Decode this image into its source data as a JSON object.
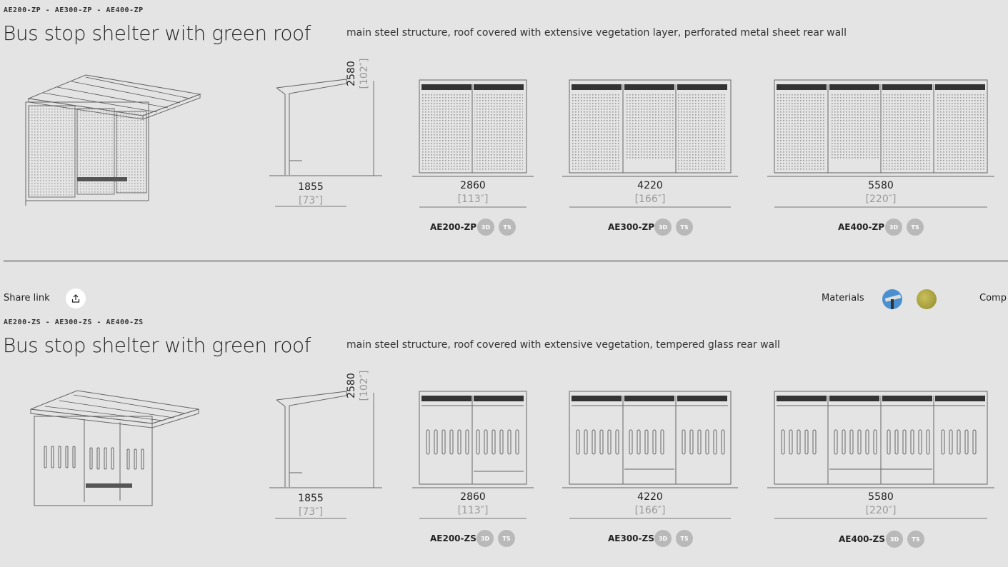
{
  "sections": [
    {
      "codes": "AE200-ZP - AE300-ZP - AE400-ZP",
      "title": "Bus stop shelter with green roof",
      "description": "main steel structure, roof covered with extensive vegetation layer, perforated metal sheet rear wall",
      "side_view": {
        "height": "2580",
        "height_in": "[102″]",
        "depth": "1855",
        "depth_in": "[73″]"
      },
      "variants": [
        {
          "width": "2860",
          "width_in": "[113″]",
          "model": "AE200-ZP",
          "badge_3d": "3D",
          "badge_ts": "TS"
        },
        {
          "width": "4220",
          "width_in": "[166″]",
          "model": "AE300-ZP",
          "badge_3d": "3D",
          "badge_ts": "TS"
        },
        {
          "width": "5580",
          "width_in": "[220″]",
          "model": "AE400-ZP",
          "badge_3d": "3D",
          "badge_ts": "TS"
        }
      ]
    },
    {
      "codes": "AE200-ZS - AE300-ZS - AE400-ZS",
      "title": "Bus stop shelter with green roof",
      "description": "main steel structure, roof covered with extensive vegetation, tempered glass rear wall",
      "side_view": {
        "height": "2580",
        "height_in": "[102″]",
        "depth": "1855",
        "depth_in": "[73″]"
      },
      "variants": [
        {
          "width": "2860",
          "width_in": "[113″]",
          "model": "AE200-ZS",
          "badge_3d": "3D",
          "badge_ts": "TS"
        },
        {
          "width": "4220",
          "width_in": "[166″]",
          "model": "AE300-ZS",
          "badge_3d": "3D",
          "badge_ts": "TS"
        },
        {
          "width": "5580",
          "width_in": "[220″]",
          "model": "AE400-ZS",
          "badge_3d": "3D",
          "badge_ts": "TS"
        }
      ]
    }
  ],
  "toolbar": {
    "share_label": "Share link",
    "share_icon": "share-icon",
    "materials_label": "Materials",
    "materials_swatches": [
      {
        "icon": "steel-material-icon",
        "color": "#4a8fd0"
      },
      {
        "icon": "vegetation-material-icon",
        "color": "#a9a23a"
      }
    ],
    "components_label": "Comp"
  }
}
